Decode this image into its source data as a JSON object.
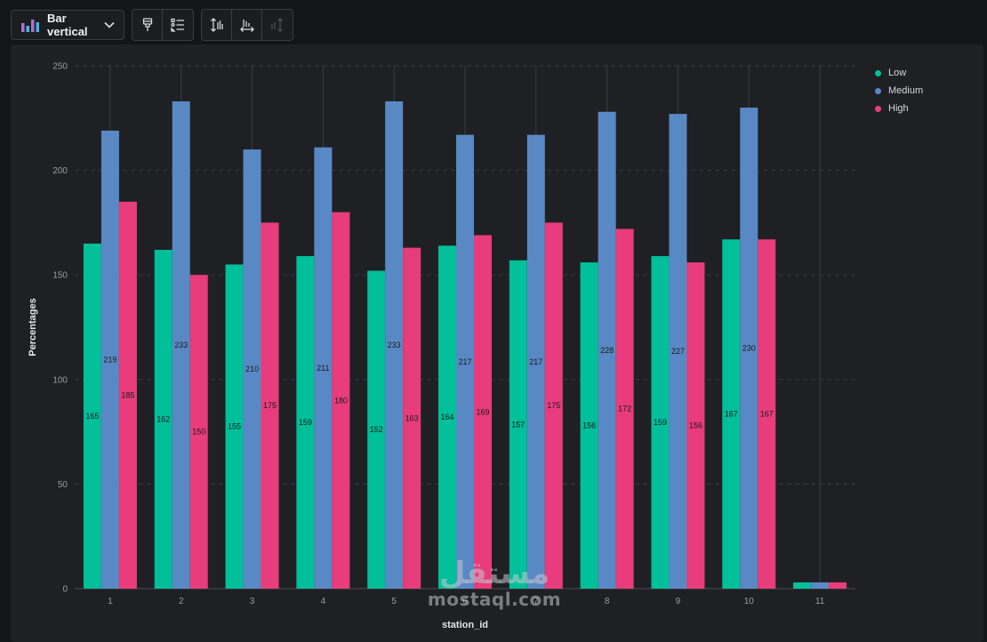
{
  "toolbar": {
    "chart_type_label": "Bar vertical",
    "chart_type_icon": "bar-chart-icon",
    "dropdown_icon": "chevron-down-icon",
    "group1": [
      "paint-brush-icon",
      "list-settings-icon"
    ],
    "group2": [
      "vertical-sort-icon",
      "horizontal-sort-icon",
      "reset-sort-icon"
    ]
  },
  "colors": {
    "low": "#00bf99",
    "medium": "#5889c4",
    "high": "#e83c7c",
    "grid": "#3a3b42",
    "axis_text": "#9a9ba2",
    "label_text": "#1a1a1a"
  },
  "watermark": {
    "arabic": "مستقل",
    "latin": "mostaql.com"
  },
  "chart_data": {
    "type": "bar",
    "title": "",
    "xlabel": "station_id",
    "ylabel": "Percentages",
    "ylim": [
      0,
      250
    ],
    "yticks": [
      0,
      50,
      100,
      150,
      200,
      250
    ],
    "grid": true,
    "legend_position": "top-right",
    "categories": [
      "1",
      "2",
      "3",
      "4",
      "5",
      "6",
      "7",
      "8",
      "9",
      "10",
      "11"
    ],
    "series": [
      {
        "name": "Low",
        "values": [
          165,
          162,
          155,
          159,
          152,
          164,
          157,
          156,
          159,
          167,
          3
        ]
      },
      {
        "name": "Medium",
        "values": [
          219,
          233,
          210,
          211,
          233,
          217,
          217,
          228,
          227,
          230,
          3
        ]
      },
      {
        "name": "High",
        "values": [
          185,
          150,
          175,
          180,
          163,
          169,
          175,
          172,
          156,
          167,
          3
        ]
      }
    ]
  }
}
